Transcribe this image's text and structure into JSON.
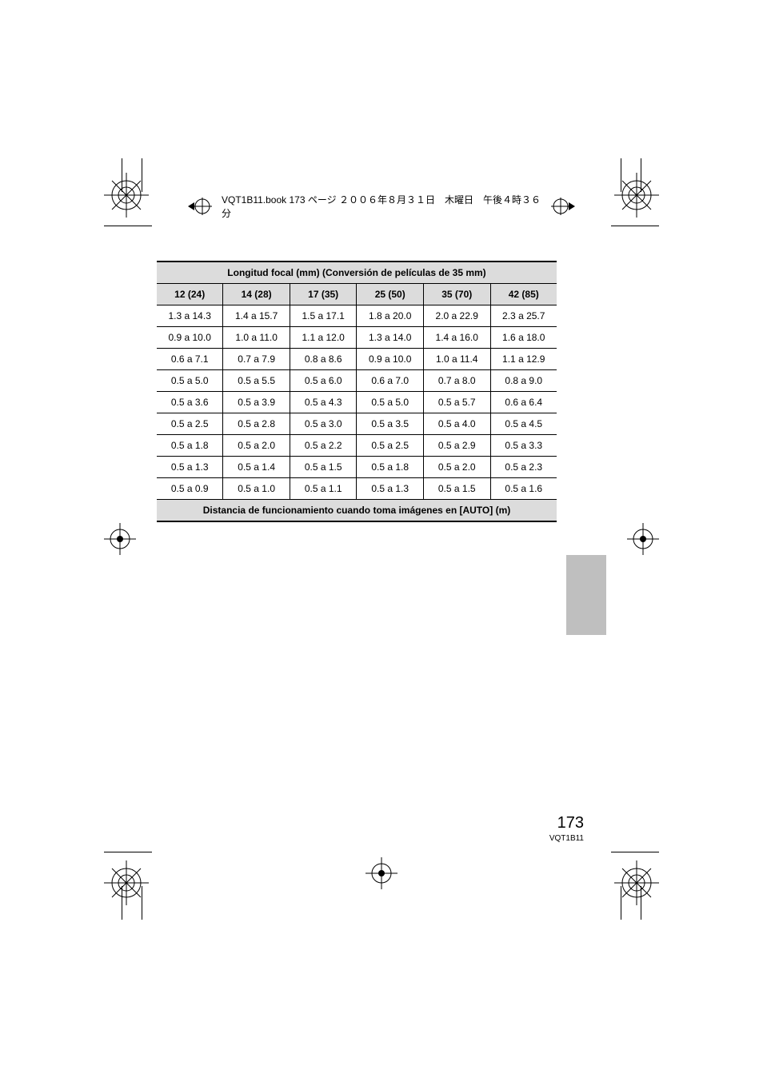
{
  "header": {
    "book_label": "VQT1B11.book  173 ページ  ２００６年８月３１日　木曜日　午後４時３６分"
  },
  "table": {
    "title": "Longitud focal (mm) (Conversión de películas de 35 mm)",
    "footer": "Distancia de funcionamiento cuando toma imágenes en [AUTO] (m)",
    "columns": [
      "12 (24)",
      "14 (28)",
      "17 (35)",
      "25 (50)",
      "35 (70)",
      "42 (85)"
    ],
    "rows": [
      [
        "1.3 a 14.3",
        "1.4 a 15.7",
        "1.5 a 17.1",
        "1.8 a 20.0",
        "2.0 a 22.9",
        "2.3 a 25.7"
      ],
      [
        "0.9 a 10.0",
        "1.0 a 11.0",
        "1.1 a 12.0",
        "1.3 a 14.0",
        "1.4 a 16.0",
        "1.6 a 18.0"
      ],
      [
        "0.6 a 7.1",
        "0.7 a 7.9",
        "0.8 a 8.6",
        "0.9 a 10.0",
        "1.0 a 11.4",
        "1.1 a 12.9"
      ],
      [
        "0.5 a 5.0",
        "0.5 a 5.5",
        "0.5 a 6.0",
        "0.6 a 7.0",
        "0.7 a 8.0",
        "0.8 a 9.0"
      ],
      [
        "0.5 a 3.6",
        "0.5 a 3.9",
        "0.5 a 4.3",
        "0.5 a 5.0",
        "0.5 a 5.7",
        "0.6 a 6.4"
      ],
      [
        "0.5 a 2.5",
        "0.5 a 2.8",
        "0.5 a 3.0",
        "0.5 a 3.5",
        "0.5 a 4.0",
        "0.5 a 4.5"
      ],
      [
        "0.5 a 1.8",
        "0.5 a 2.0",
        "0.5 a 2.2",
        "0.5 a 2.5",
        "0.5 a 2.9",
        "0.5 a 3.3"
      ],
      [
        "0.5 a 1.3",
        "0.5 a 1.4",
        "0.5 a 1.5",
        "0.5 a 1.8",
        "0.5 a 2.0",
        "0.5 a 2.3"
      ],
      [
        "0.5 a 0.9",
        "0.5 a 1.0",
        "0.5 a 1.1",
        "0.5 a 1.3",
        "0.5 a 1.5",
        "0.5 a 1.6"
      ]
    ]
  },
  "footer": {
    "page": "173",
    "model": "VQT1B11"
  },
  "colors": {
    "header_bg": "#dcdcdc",
    "tab_bg": "#bfbfbf"
  }
}
